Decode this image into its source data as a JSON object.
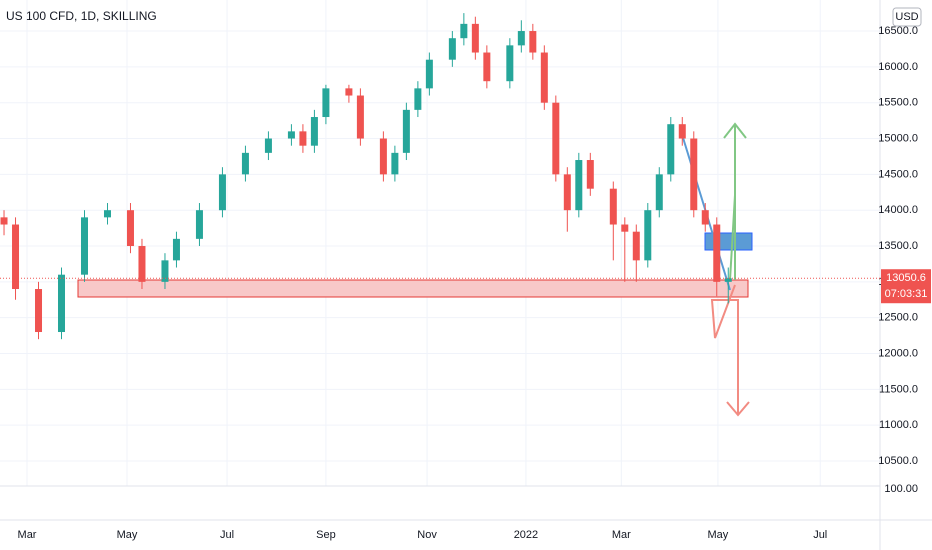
{
  "chart_data": {
    "type": "candlestick",
    "title": "US 100 CFD, 1D, SKILLING",
    "currency": "USD",
    "x": [
      -2,
      -1,
      1,
      3,
      5,
      7,
      9,
      10,
      12,
      13,
      15,
      17,
      19,
      21,
      23,
      24,
      25,
      26,
      28,
      29,
      31,
      32,
      33,
      34,
      35,
      37,
      38,
      39,
      40,
      42,
      43,
      44,
      45,
      46,
      47,
      48,
      49,
      51,
      52,
      53,
      54,
      55,
      56,
      57,
      58,
      59,
      60,
      61
    ],
    "open": [
      13900,
      13800,
      12900,
      12300,
      13100,
      13900,
      14000,
      13500,
      13000,
      13300,
      13600,
      14000,
      14500,
      14800,
      15000,
      15100,
      14900,
      15300,
      15700,
      15600,
      15000,
      14500,
      14800,
      15400,
      15700,
      16100,
      16400,
      16600,
      16200,
      15800,
      16300,
      16500,
      16200,
      15500,
      14500,
      14000,
      14700,
      14300,
      13800,
      13700,
      13300,
      14000,
      14500,
      15200,
      15000,
      14000,
      13800,
      13000
    ],
    "high": [
      14000,
      13900,
      13000,
      13200,
      14000,
      14100,
      14100,
      13600,
      13400,
      13700,
      14100,
      14600,
      14900,
      15100,
      15200,
      15200,
      15400,
      15750,
      15750,
      15700,
      15100,
      14900,
      15500,
      15800,
      16200,
      16500,
      16750,
      16700,
      16300,
      16400,
      16650,
      16600,
      16300,
      15600,
      14600,
      14800,
      14800,
      14400,
      13900,
      13800,
      14100,
      14600,
      15300,
      15300,
      15100,
      14100,
      13900,
      13200
    ],
    "low": [
      13650,
      12750,
      12200,
      12200,
      13000,
      13800,
      13400,
      12900,
      12900,
      13200,
      13500,
      13900,
      14400,
      14700,
      14900,
      14800,
      14800,
      15200,
      15500,
      14900,
      14400,
      14400,
      14700,
      15300,
      15600,
      16000,
      16300,
      16100,
      15700,
      15700,
      16200,
      16100,
      15400,
      14400,
      13700,
      13900,
      14200,
      13300,
      13000,
      13000,
      13200,
      13900,
      14400,
      14900,
      13900,
      13700,
      12800,
      12700
    ],
    "close": [
      13800,
      12900,
      12300,
      13100,
      13900,
      14000,
      13500,
      13000,
      13300,
      13600,
      14000,
      14500,
      14800,
      15000,
      15100,
      14900,
      15300,
      15700,
      15600,
      15000,
      14500,
      14800,
      15400,
      15700,
      16100,
      16400,
      16600,
      16200,
      15800,
      16300,
      16500,
      16200,
      15500,
      14500,
      14000,
      14700,
      14300,
      13800,
      13700,
      13300,
      14000,
      14500,
      15200,
      15000,
      14000,
      13800,
      13000,
      13050
    ],
    "up_color": "#26a69a",
    "down_color": "#ef5350",
    "xlim": [
      -2.35,
      74.2
    ],
    "xticks": [
      {
        "value": 0,
        "label": "Mar"
      },
      {
        "value": 8.7,
        "label": "May"
      },
      {
        "value": 17.4,
        "label": "Jul"
      },
      {
        "value": 26,
        "label": "Sep"
      },
      {
        "value": 34.8,
        "label": "Nov"
      },
      {
        "value": 43.4,
        "label": "2022"
      },
      {
        "value": 51.7,
        "label": "Mar"
      },
      {
        "value": 60.1,
        "label": "May"
      },
      {
        "value": 69,
        "label": "Jul"
      }
    ],
    "ylim": [
      10235,
      16933
    ],
    "yticks": [
      {
        "value": 10500,
        "label": "10500.0"
      },
      {
        "value": 11000,
        "label": "11000.0"
      },
      {
        "value": 11500,
        "label": "11500.0"
      },
      {
        "value": 12000,
        "label": "12000.0"
      },
      {
        "value": 12500,
        "label": "12500.0"
      },
      {
        "value": 13000,
        "label": "13000.0"
      },
      {
        "value": 13500,
        "label": "13500.0"
      },
      {
        "value": 14000,
        "label": "14000.0"
      },
      {
        "value": 14500,
        "label": "14500.0"
      },
      {
        "value": 15000,
        "label": "15000.0"
      },
      {
        "value": 15500,
        "label": "15500.0"
      },
      {
        "value": 16000,
        "label": "16000.0"
      },
      {
        "value": 16500,
        "label": "16500.0"
      }
    ],
    "last_price": {
      "value": 13050.6,
      "label": "13050.6"
    },
    "countdown": "07:03:31",
    "lower_pane_label": "100.00",
    "grid": true
  }
}
